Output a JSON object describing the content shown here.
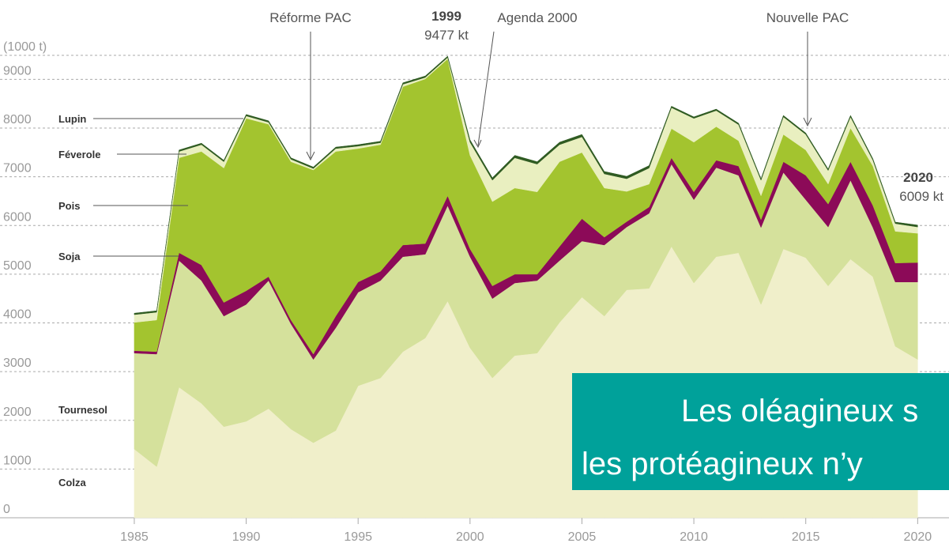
{
  "chart_data": {
    "type": "stacked_area",
    "y_label": "(1000 t)",
    "x": [
      1985,
      1986,
      1987,
      1988,
      1989,
      1990,
      1991,
      1992,
      1993,
      1994,
      1995,
      1996,
      1997,
      1998,
      1999,
      2000,
      2001,
      2002,
      2003,
      2004,
      2005,
      2006,
      2007,
      2008,
      2009,
      2010,
      2011,
      2012,
      2013,
      2014,
      2015,
      2016,
      2017,
      2018,
      2019,
      2020
    ],
    "xlim": [
      1979,
      2021.4
    ],
    "xticks": [
      1985,
      1990,
      1995,
      2000,
      2005,
      2010,
      2015,
      2020
    ],
    "ylim": [
      0,
      10630
    ],
    "yticks": [
      0,
      1000,
      2000,
      3000,
      4000,
      5000,
      6000,
      7000,
      8000,
      9000
    ],
    "grid": true,
    "series": [
      {
        "name": "Colza",
        "color": "#f0efca",
        "values": [
          1410,
          1050,
          2680,
          2350,
          1870,
          1980,
          2240,
          1820,
          1540,
          1790,
          2710,
          2870,
          3410,
          3690,
          4450,
          3490,
          2870,
          3330,
          3380,
          4010,
          4530,
          4140,
          4680,
          4710,
          5570,
          4820,
          5360,
          5440,
          4380,
          5520,
          5340,
          4760,
          5310,
          4950,
          3520,
          3250
        ]
      },
      {
        "name": "Tournesol",
        "color": "#d5e19c",
        "values": [
          1970,
          2310,
          2600,
          2520,
          2270,
          2400,
          2630,
          2160,
          1710,
          2110,
          1920,
          2000,
          1950,
          1720,
          1960,
          1870,
          1630,
          1490,
          1490,
          1270,
          1150,
          1460,
          1290,
          1540,
          1690,
          1710,
          1830,
          1590,
          1580,
          1570,
          1190,
          1210,
          1620,
          1010,
          1320,
          1590
        ]
      },
      {
        "name": "Soja",
        "color": "#8c0a58",
        "values": [
          50,
          50,
          160,
          320,
          280,
          280,
          80,
          80,
          110,
          240,
          210,
          190,
          240,
          220,
          200,
          160,
          260,
          180,
          130,
          290,
          460,
          160,
          110,
          130,
          130,
          160,
          150,
          190,
          160,
          220,
          500,
          470,
          380,
          450,
          390,
          400
        ]
      },
      {
        "name": "Pois",
        "color": "#a3c42f",
        "values": [
          580,
          650,
          1950,
          2330,
          2760,
          3540,
          3130,
          3250,
          3780,
          3380,
          2740,
          2600,
          3250,
          3380,
          2810,
          1920,
          1730,
          1770,
          1690,
          1740,
          1360,
          1010,
          620,
          470,
          600,
          1020,
          690,
          520,
          490,
          560,
          520,
          410,
          690,
          810,
          650,
          600
        ]
      },
      {
        "name": "Féverole",
        "color": "#e9efc0",
        "values": [
          160,
          160,
          130,
          140,
          130,
          50,
          40,
          50,
          30,
          60,
          50,
          40,
          50,
          30,
          30,
          270,
          440,
          620,
          570,
          350,
          320,
          290,
          260,
          330,
          430,
          490,
          330,
          330,
          320,
          360,
          320,
          280,
          230,
          120,
          160,
          130
        ]
      },
      {
        "name": "Lupin",
        "color": "#2f5b22",
        "values": [
          30,
          30,
          30,
          30,
          30,
          30,
          30,
          30,
          30,
          30,
          30,
          30,
          30,
          30,
          27,
          50,
          50,
          50,
          50,
          50,
          50,
          50,
          50,
          50,
          30,
          30,
          30,
          30,
          30,
          30,
          30,
          30,
          30,
          30,
          30,
          39
        ]
      }
    ],
    "annotations": [
      {
        "text": "Réforme PAC"
      },
      {
        "text": "1999",
        "sub": "9477 kt"
      },
      {
        "text": "Agenda 2000"
      },
      {
        "text": "Nouvelle PAC"
      },
      {
        "text": "2020",
        "sub": "6009 kt"
      }
    ],
    "banner": [
      "Les oléagineux s",
      "les protéagineux n’y"
    ]
  }
}
